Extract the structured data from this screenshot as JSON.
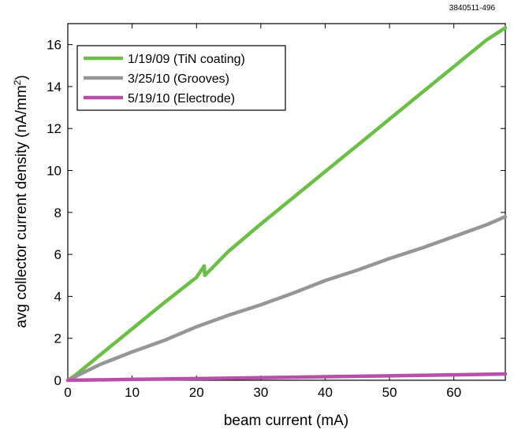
{
  "figure_id": "3840511-496",
  "chart_data": {
    "type": "line",
    "xlabel": "beam current (mA)",
    "ylabel_main": "avg collector current density (nA/mm",
    "ylabel_sup": "2",
    "ylabel_close": ")",
    "xlim": [
      0,
      68
    ],
    "ylim": [
      0,
      17
    ],
    "xticks": [
      0,
      10,
      20,
      30,
      40,
      50,
      60
    ],
    "yticks": [
      0,
      2,
      4,
      6,
      8,
      10,
      12,
      14,
      16
    ],
    "grid": false,
    "legend_position": "top-left",
    "series": [
      {
        "name": "1/19/09 (TiN coating)",
        "color": "#6abf45",
        "x": [
          0,
          1,
          5,
          10,
          15,
          20,
          21.2,
          21.3,
          25,
          30,
          35,
          40,
          45,
          50,
          55,
          60,
          65,
          68
        ],
        "y": [
          0,
          0.2,
          1.2,
          2.45,
          3.7,
          4.9,
          5.45,
          5.0,
          6.15,
          7.45,
          8.7,
          9.95,
          11.2,
          12.45,
          13.7,
          14.95,
          16.2,
          16.8
        ]
      },
      {
        "name": "3/25/10 (Grooves)",
        "color": "#969696",
        "x": [
          0,
          1,
          5,
          10,
          15,
          20,
          25,
          30,
          35,
          40,
          45,
          50,
          55,
          60,
          65,
          68
        ],
        "y": [
          0,
          0.15,
          0.75,
          1.35,
          1.9,
          2.55,
          3.1,
          3.6,
          4.15,
          4.75,
          5.25,
          5.8,
          6.3,
          6.85,
          7.4,
          7.8
        ]
      },
      {
        "name": "5/19/10 (Electrode)",
        "color": "#b84fa8",
        "x": [
          0,
          10,
          20,
          30,
          40,
          50,
          60,
          68
        ],
        "y": [
          0,
          0.04,
          0.08,
          0.12,
          0.17,
          0.21,
          0.26,
          0.3
        ]
      }
    ]
  }
}
